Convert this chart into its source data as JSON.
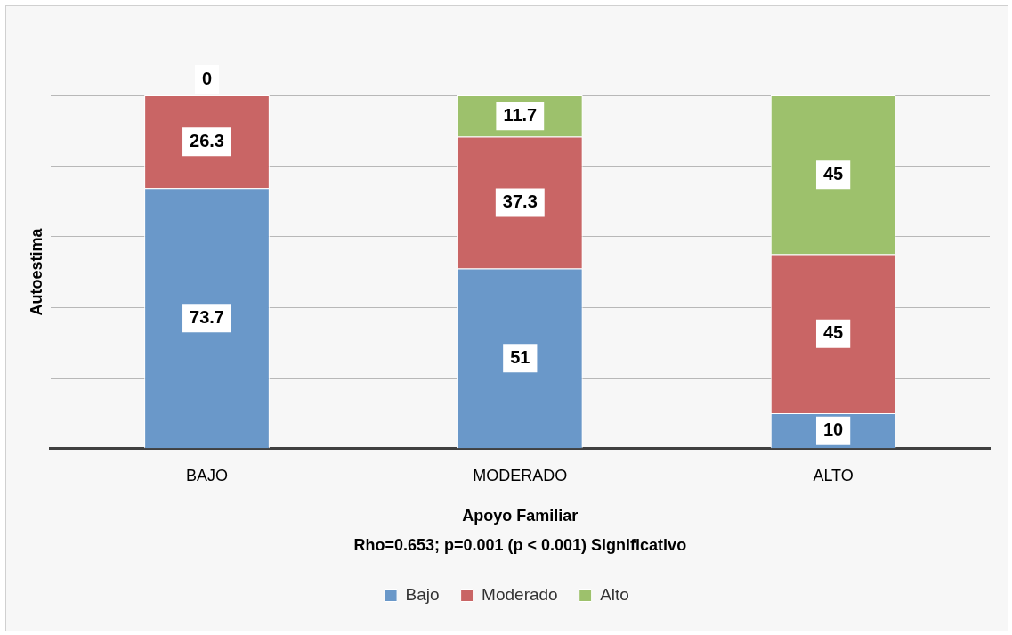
{
  "chart_data": {
    "type": "bar",
    "stacked": true,
    "xlabel": "Apoyo Familiar",
    "ylabel": "Autoestima",
    "annotations": [
      "Rho=0.653; p=0.001 (p < 0.001) Significativo"
    ],
    "categories": [
      "BAJO",
      "MODERADO",
      "ALTO"
    ],
    "series": [
      {
        "name": "Bajo",
        "color": "#6a98c9",
        "values": [
          73.7,
          51,
          10
        ]
      },
      {
        "name": "Moderado",
        "color": "#c96565",
        "values": [
          26.3,
          37.3,
          45
        ]
      },
      {
        "name": "Alto",
        "color": "#9dc16c",
        "values": [
          0,
          11.7,
          45
        ]
      }
    ],
    "ylim": [
      0,
      100
    ],
    "yticks": [
      {
        "value": 0,
        "label": null
      },
      {
        "value": 20,
        "label": null
      },
      {
        "value": 40,
        "label": null
      },
      {
        "value": 60,
        "label": null
      },
      {
        "value": 80,
        "label": null
      },
      {
        "value": 100,
        "label": null
      }
    ],
    "tick_labels": "x",
    "grid": "y",
    "legend": "bottom",
    "data_labels": true
  }
}
